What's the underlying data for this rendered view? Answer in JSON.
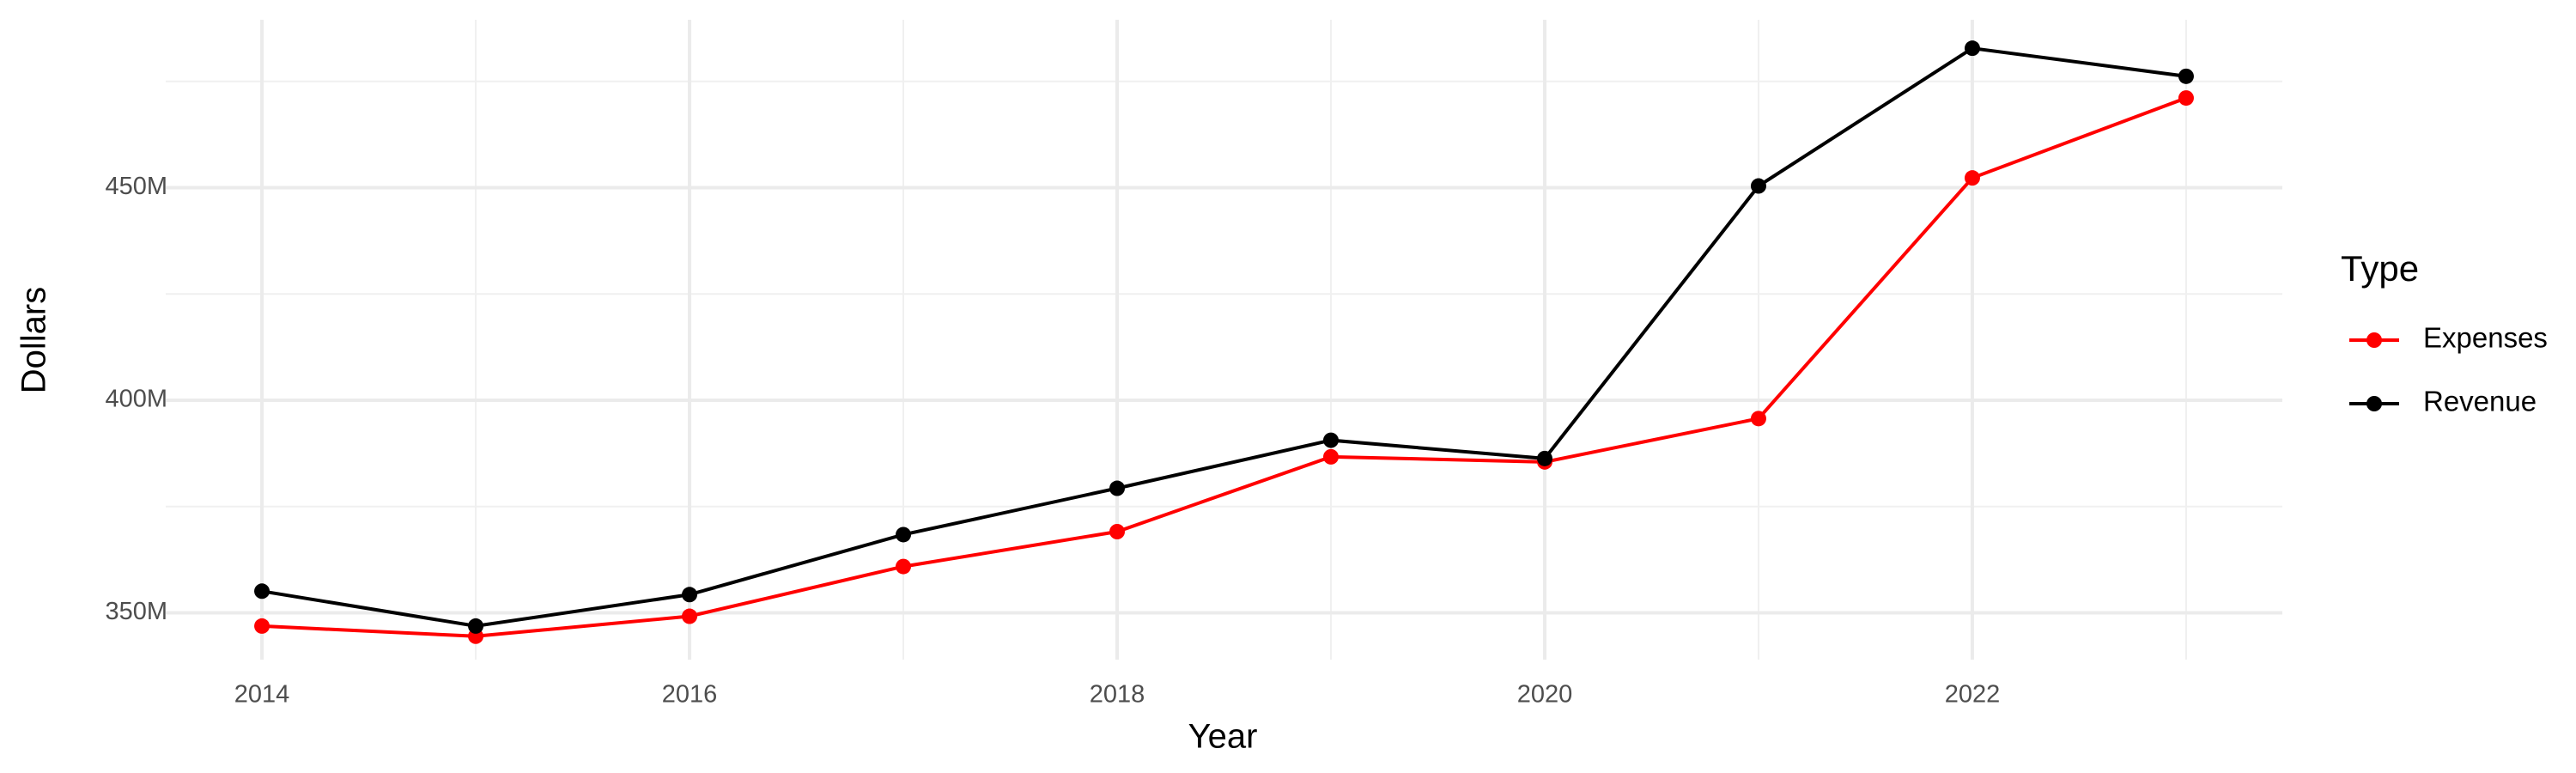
{
  "chart_data": {
    "type": "line",
    "x_label": "Year",
    "y_label": "Dollars",
    "x": [
      2014,
      2015,
      2016,
      2017,
      2018,
      2019,
      2020,
      2021,
      2022,
      2023
    ],
    "series": [
      {
        "name": "Expenses",
        "color": "#ff0000",
        "values": [
          346900000,
          344500000,
          349200000,
          360900000,
          369100000,
          386700000,
          385500000,
          395700000,
          452300000,
          471100000
        ]
      },
      {
        "name": "Revenue",
        "color": "#000000",
        "values": [
          355100000,
          346900000,
          354300000,
          368400000,
          379300000,
          390600000,
          386300000,
          450400000,
          482800000,
          476200000
        ]
      }
    ],
    "legend_title": "Type",
    "xlim": [
      2013.55,
      2023.45
    ],
    "xticks": [
      2014,
      2016,
      2018,
      2020,
      2022
    ],
    "xminor": [
      2015,
      2017,
      2019,
      2021,
      2023
    ],
    "ylim": [
      339000000,
      489500000
    ],
    "yticks": [
      {
        "value": 350000000,
        "label": "350M"
      },
      {
        "value": 400000000,
        "label": "400M"
      },
      {
        "value": 450000000,
        "label": "450M"
      }
    ],
    "yminor": [
      375000000,
      425000000,
      475000000
    ],
    "grid": true,
    "legend": "right"
  }
}
